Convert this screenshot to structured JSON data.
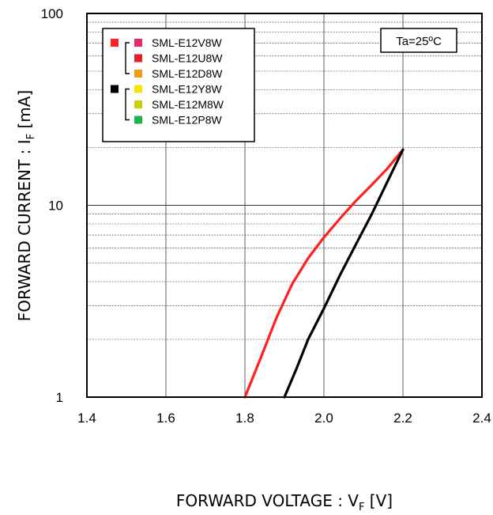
{
  "chart_data": {
    "type": "line",
    "xlabel": "FORWARD VOLTAGE : V",
    "xlabel_sub": "F",
    "xlabel_unit": " [V]",
    "ylabel": "FORWARD CURRENT : I",
    "ylabel_sub": "F",
    "ylabel_unit": " [mA]",
    "xlim": [
      1.4,
      2.4
    ],
    "ylim": [
      1,
      100
    ],
    "y_scale": "log",
    "grid": true,
    "x_ticks": [
      "1.4",
      "1.6",
      "1.8",
      "2.0",
      "2.2",
      "2.4"
    ],
    "y_ticks": [
      "1",
      "10",
      "100"
    ],
    "annotation": "Ta=25ºC",
    "legend": {
      "placement": "top-left",
      "groups": [
        {
          "marker_color": "#ff2020",
          "items": [
            {
              "name": "SML-E12V8W",
              "color": "#e8256f"
            },
            {
              "name": "SML-E12U8W",
              "color": "#e0202a"
            },
            {
              "name": "SML-E12D8W",
              "color": "#f59a1a"
            }
          ]
        },
        {
          "marker_color": "#000000",
          "items": [
            {
              "name": "SML-E12Y8W",
              "color": "#f5e600"
            },
            {
              "name": "SML-E12M8W",
              "color": "#c8d000"
            },
            {
              "name": "SML-E12P8W",
              "color": "#22b24c"
            }
          ]
        }
      ]
    },
    "series": [
      {
        "color": "#ff2020",
        "x": [
          1.8,
          1.84,
          1.88,
          1.92,
          1.96,
          2.0,
          2.04,
          2.08,
          2.12,
          2.16,
          2.2
        ],
        "y": [
          1.0,
          1.6,
          2.6,
          3.9,
          5.3,
          6.8,
          8.5,
          10.5,
          12.7,
          15.5,
          19.5
        ]
      },
      {
        "color": "#000000",
        "x": [
          1.9,
          1.93,
          1.96,
          2.0,
          2.04,
          2.08,
          2.12,
          2.16,
          2.2
        ],
        "y": [
          1.0,
          1.4,
          2.0,
          2.9,
          4.3,
          6.2,
          8.9,
          13.2,
          19.5
        ]
      }
    ]
  }
}
